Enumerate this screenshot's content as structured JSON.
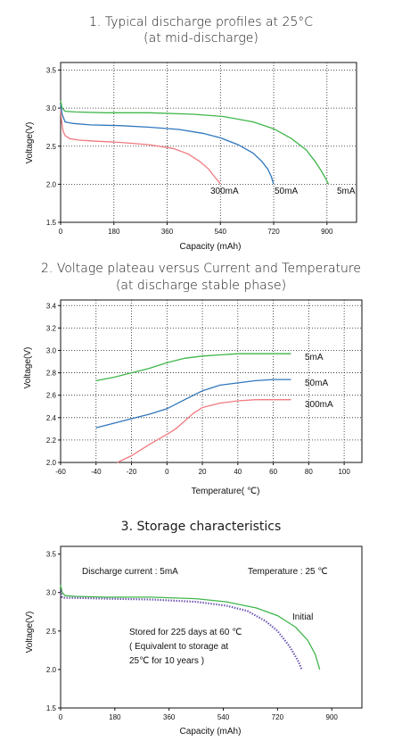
{
  "colors": {
    "red": "#f07a80",
    "blue": "#2f77bd",
    "green": "#3fb64a",
    "purple": "#6a4fb0",
    "dashed": "#6aa0d8"
  },
  "chart_data": [
    {
      "type": "line",
      "title": "1. Typical discharge profiles at 25°C",
      "subtitle": "(at mid-discharge)",
      "xlabel": "Capacity (mAh)",
      "ylabel": "Voltage(V)",
      "xlim": [
        0,
        1000
      ],
      "ylim": [
        1.5,
        3.6
      ],
      "xticks": [
        "0",
        "180",
        "360",
        "540",
        "720",
        "900"
      ],
      "yticks": [
        "1.5",
        "2.0",
        "2.5",
        "3.0",
        "3.5"
      ],
      "grid": true,
      "series": [
        {
          "name": "300mA",
          "color": "red",
          "x": [
            0,
            3,
            8,
            15,
            30,
            60,
            100,
            200,
            300,
            380,
            430,
            470,
            500,
            520,
            535,
            540
          ],
          "y": [
            3.0,
            2.84,
            2.7,
            2.64,
            2.6,
            2.58,
            2.57,
            2.55,
            2.52,
            2.47,
            2.4,
            2.3,
            2.2,
            2.1,
            2.03,
            2.0
          ]
        },
        {
          "name": "50mA",
          "color": "blue",
          "x": [
            0,
            5,
            15,
            40,
            100,
            200,
            300,
            400,
            480,
            540,
            600,
            650,
            680,
            700,
            712,
            720
          ],
          "y": [
            3.05,
            2.92,
            2.82,
            2.8,
            2.78,
            2.77,
            2.75,
            2.72,
            2.67,
            2.61,
            2.52,
            2.41,
            2.3,
            2.2,
            2.1,
            2.0
          ]
        },
        {
          "name": "5mA",
          "color": "green",
          "x": [
            0,
            5,
            15,
            50,
            150,
            300,
            450,
            550,
            650,
            720,
            780,
            830,
            860,
            880,
            895,
            905
          ],
          "y": [
            3.1,
            3.0,
            2.96,
            2.95,
            2.94,
            2.94,
            2.92,
            2.89,
            2.82,
            2.73,
            2.6,
            2.45,
            2.3,
            2.18,
            2.08,
            2.0
          ]
        }
      ],
      "labels": [
        "300mA",
        "50mA",
        "5mA"
      ]
    },
    {
      "type": "line",
      "title": "2. Voltage plateau versus Current and Temperature",
      "subtitle": "(at discharge stable phase)",
      "xlabel": "Temperature(  ℃)",
      "ylabel": "Voltage(V)",
      "xlim": [
        -60,
        110
      ],
      "ylim": [
        2.0,
        3.45
      ],
      "xticks": [
        "-60",
        "-40",
        "-20",
        "0",
        "20",
        "40",
        "60",
        "80",
        "100"
      ],
      "yticks": [
        "2.0",
        "2.2",
        "2.4",
        "2.6",
        "2.8",
        "3.0",
        "3.2",
        "3.4"
      ],
      "grid": true,
      "series": [
        {
          "name": "5mA",
          "color": "green",
          "x": [
            -40,
            -30,
            -20,
            -10,
            0,
            10,
            20,
            30,
            40,
            50,
            60,
            70
          ],
          "y": [
            2.73,
            2.76,
            2.8,
            2.84,
            2.89,
            2.93,
            2.95,
            2.96,
            2.97,
            2.97,
            2.97,
            2.97
          ]
        },
        {
          "name": "50mA",
          "color": "blue",
          "x": [
            -40,
            -30,
            -20,
            -10,
            0,
            10,
            20,
            30,
            40,
            50,
            60,
            70
          ],
          "y": [
            2.31,
            2.35,
            2.39,
            2.43,
            2.48,
            2.56,
            2.64,
            2.69,
            2.71,
            2.73,
            2.74,
            2.74
          ]
        },
        {
          "name": "300mA",
          "color": "red",
          "x": [
            -28,
            -20,
            -10,
            0,
            5,
            10,
            15,
            20,
            30,
            40,
            50,
            60,
            70
          ],
          "y": [
            2.0,
            2.06,
            2.16,
            2.25,
            2.3,
            2.37,
            2.44,
            2.49,
            2.53,
            2.55,
            2.56,
            2.56,
            2.56
          ]
        }
      ],
      "labels": [
        "5mA",
        "50mA",
        "300mA"
      ]
    },
    {
      "type": "line",
      "title": "3. Storage characteristics",
      "xlabel": "Capacity (mAh)",
      "ylabel": "Voltage(V)",
      "xlim": [
        0,
        1000
      ],
      "ylim": [
        1.5,
        3.6
      ],
      "xticks": [
        "0",
        "180",
        "360",
        "540",
        "720",
        "900"
      ],
      "yticks": [
        "1.5",
        "2.0",
        "2.5",
        "3.0",
        "3.5"
      ],
      "grid": false,
      "series": [
        {
          "name": "Initial",
          "color": "green",
          "x": [
            0,
            5,
            15,
            50,
            150,
            300,
            450,
            550,
            650,
            720,
            780,
            820,
            845,
            860
          ],
          "y": [
            3.1,
            3.0,
            2.96,
            2.95,
            2.94,
            2.94,
            2.92,
            2.88,
            2.8,
            2.7,
            2.55,
            2.38,
            2.2,
            2.0
          ]
        },
        {
          "name": "Stored for 225 days at 60 ℃",
          "color": "purple",
          "x": [
            0,
            5,
            15,
            50,
            150,
            300,
            450,
            550,
            620,
            680,
            720,
            760,
            790,
            800
          ],
          "y": [
            3.02,
            2.94,
            2.93,
            2.93,
            2.92,
            2.91,
            2.88,
            2.83,
            2.76,
            2.63,
            2.5,
            2.3,
            2.1,
            2.0
          ]
        }
      ],
      "notes": {
        "discharge": "Discharge current  : 5mA",
        "temperature": "Temperature : 25 ℃",
        "initial": "Initial",
        "stored_1": "Stored for 225 days at 60   ℃",
        "stored_2": "( Equivalent to storage at",
        "stored_3": "25℃ for 10 years   )"
      }
    }
  ]
}
